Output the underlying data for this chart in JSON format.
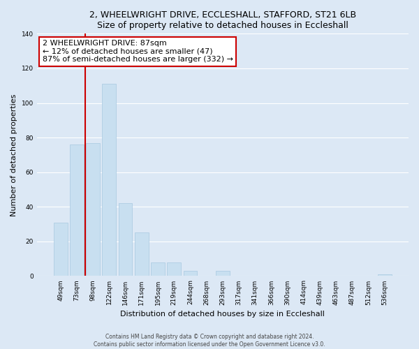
{
  "title1": "2, WHEELWRIGHT DRIVE, ECCLESHALL, STAFFORD, ST21 6LB",
  "title2": "Size of property relative to detached houses in Eccleshall",
  "xlabel": "Distribution of detached houses by size in Eccleshall",
  "ylabel": "Number of detached properties",
  "bar_labels": [
    "49sqm",
    "73sqm",
    "98sqm",
    "122sqm",
    "146sqm",
    "171sqm",
    "195sqm",
    "219sqm",
    "244sqm",
    "268sqm",
    "293sqm",
    "317sqm",
    "341sqm",
    "366sqm",
    "390sqm",
    "414sqm",
    "439sqm",
    "463sqm",
    "487sqm",
    "512sqm",
    "536sqm"
  ],
  "bar_values": [
    31,
    76,
    77,
    111,
    42,
    25,
    8,
    8,
    3,
    0,
    3,
    0,
    0,
    0,
    0,
    0,
    0,
    0,
    0,
    0,
    1
  ],
  "bar_color": "#c8dff0",
  "bar_edge_color": "#a8c8e0",
  "ylim": [
    0,
    140
  ],
  "yticks": [
    0,
    20,
    40,
    60,
    80,
    100,
    120,
    140
  ],
  "annotation_title": "2 WHEELWRIGHT DRIVE: 87sqm",
  "annotation_line1": "← 12% of detached houses are smaller (47)",
  "annotation_line2": "87% of semi-detached houses are larger (332) →",
  "annotation_box_color": "#ffffff",
  "annotation_box_edge_color": "#cc0000",
  "property_line_color": "#cc0000",
  "footer1": "Contains HM Land Registry data © Crown copyright and database right 2024.",
  "footer2": "Contains public sector information licensed under the Open Government Licence v3.0.",
  "background_color": "#dce8f5",
  "plot_bg_color": "#dce8f5",
  "grid_color": "#ffffff",
  "title_fontsize": 9,
  "annotation_fontsize": 8,
  "xlabel_fontsize": 8,
  "ylabel_fontsize": 8,
  "tick_fontsize": 6.5,
  "footer_fontsize": 5.5
}
